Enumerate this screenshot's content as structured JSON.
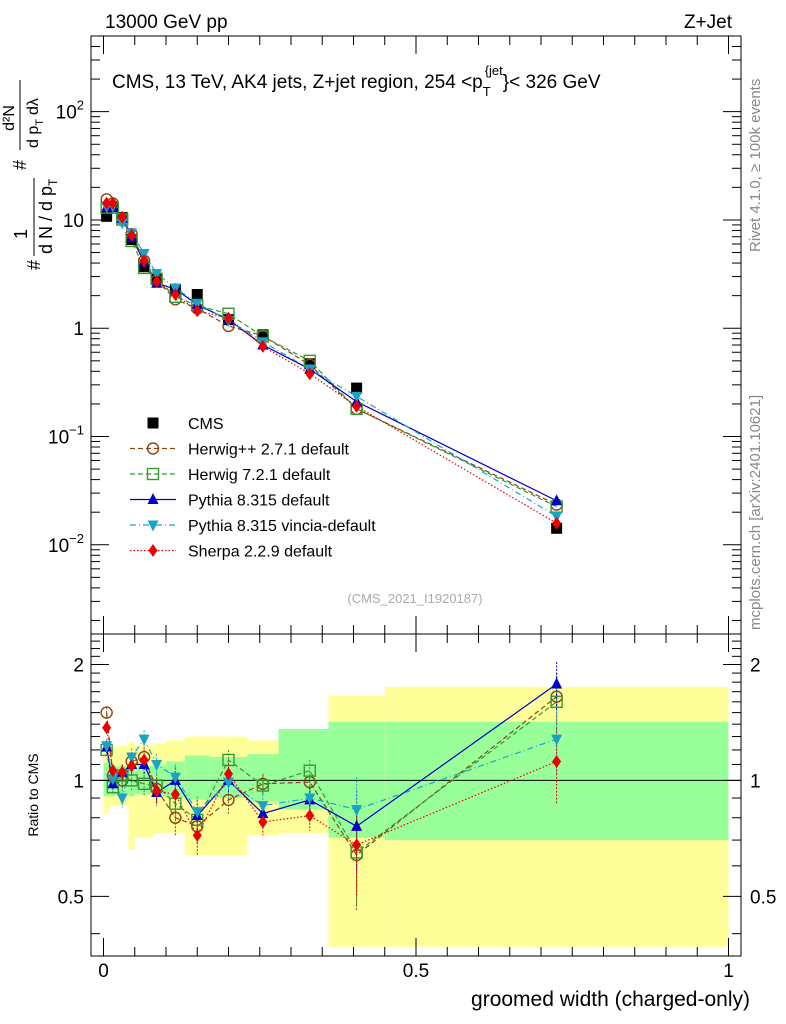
{
  "header": {
    "left_title": "13000 GeV pp",
    "right_title": "Z+Jet",
    "side_top": "Rivet 4.1.0, ≥ 100k events",
    "side_bottom": "mcplots.cern.ch [arXiv:2401.10621]"
  },
  "chart_data": [
    {
      "type": "scatter",
      "panel": "main",
      "title": "CMS, 13 TeV, AK4 jets, Z+jet region, 254 < p_T^{jet} < 326 GeV",
      "title_parts": {
        "pre": "CMS, 13 TeV, AK4 jets, Z+jet region, 254 <p",
        "sub": "T",
        "sup": "{jet",
        "mid": "}",
        "post": "< 326 GeV"
      },
      "ylabel": "1/dN/dp_T  d²N/dp_T dλ",
      "ylabel_parts": {
        "num": "1",
        "den": "d N / d p",
        "t": "T",
        "frac_num": "d²N",
        "frac_den": "d p",
        "lam": "dλ",
        "hash": "#"
      },
      "xlabel": "groomed width (charged-only)",
      "xlim": [
        0,
        1
      ],
      "ylim": [
        0.0015,
        500
      ],
      "yscale": "log",
      "ytick_labels": [
        {
          "value": 0.01,
          "base": "10",
          "exp": "−2"
        },
        {
          "value": 0.1,
          "base": "10",
          "exp": "−1"
        },
        {
          "value": 1,
          "base": "1",
          "exp": ""
        },
        {
          "value": 10,
          "base": "10",
          "exp": ""
        },
        {
          "value": 100,
          "base": "10",
          "exp": "2"
        }
      ],
      "watermark": "(CMS_2021_I1920187)",
      "x": [
        0.005,
        0.015,
        0.03,
        0.045,
        0.065,
        0.085,
        0.115,
        0.15,
        0.2,
        0.255,
        0.33,
        0.405,
        0.725
      ],
      "series": [
        {
          "name": "CMS",
          "color": "#000000",
          "marker": "square",
          "dash": "none",
          "values": [
            10.8,
            13.3,
            10.5,
            6.6,
            3.7,
            2.9,
            2.3,
            2.05,
            1.2,
            0.87,
            0.47,
            0.28,
            0.0142
          ]
        },
        {
          "name": "Herwig++ 2.7.1 default",
          "color": "#8B4513",
          "marker": "circle-open",
          "dash": "5,3",
          "values": [
            15.5,
            14.2,
            10.3,
            7.4,
            4.2,
            2.75,
            1.85,
            1.52,
            1.05,
            0.85,
            0.46,
            0.18,
            0.0235
          ]
        },
        {
          "name": "Herwig 7.2.1 default",
          "color": "#339933",
          "marker": "square-open",
          "dash": "5,3",
          "values": [
            13.0,
            13.0,
            10.1,
            6.4,
            3.6,
            2.85,
            1.95,
            1.62,
            1.36,
            0.84,
            0.5,
            0.18,
            0.0225
          ]
        },
        {
          "name": "Pythia 8.315 default",
          "color": "#0000cc",
          "marker": "triangle-up",
          "dash": "none",
          "values": [
            13.1,
            13.0,
            10.3,
            6.9,
            4.1,
            2.6,
            2.3,
            1.65,
            1.2,
            0.7,
            0.42,
            0.21,
            0.0255
          ]
        },
        {
          "name": "Pythia 8.315 vincia-default",
          "color": "#1ba3c6",
          "marker": "triangle-down",
          "dash": "6,3,1,3",
          "values": [
            13.3,
            13.4,
            9.4,
            7.6,
            4.9,
            3.2,
            2.35,
            1.7,
            1.18,
            0.75,
            0.42,
            0.235,
            0.0183
          ]
        },
        {
          "name": "Sherpa 2.2.9 default",
          "color": "#ee0000",
          "marker": "diamond",
          "dash": "1.5,2",
          "values": [
            14.3,
            14.3,
            10.6,
            7.2,
            4.2,
            2.7,
            2.05,
            1.45,
            1.24,
            0.68,
            0.38,
            0.19,
            0.0158
          ]
        }
      ]
    },
    {
      "type": "scatter",
      "panel": "ratio",
      "ylabel": "Ratio to CMS",
      "xlabel": "groomed width (charged-only)",
      "xlim": [
        0,
        1
      ],
      "ylim": [
        0.35,
        2.4
      ],
      "yscale": "log",
      "xtick_labels": [
        "0",
        "0.5",
        "1"
      ],
      "ytick_labels": [
        {
          "value": 0.5,
          "label": "0.5"
        },
        {
          "value": 1,
          "label": "1"
        },
        {
          "value": 2,
          "label": "2"
        }
      ],
      "bands": {
        "bin_edges": [
          0,
          0.01,
          0.02,
          0.04,
          0.05,
          0.08,
          0.1,
          0.13,
          0.17,
          0.23,
          0.28,
          0.36,
          0.45,
          1.0
        ],
        "green_low": [
          0.91,
          0.91,
          0.92,
          0.91,
          0.92,
          0.91,
          0.9,
          0.89,
          0.9,
          0.88,
          0.84,
          0.71,
          0.7
        ],
        "green_high": [
          1.11,
          1.1,
          1.09,
          1.1,
          1.09,
          1.1,
          1.12,
          1.16,
          1.15,
          1.17,
          1.36,
          1.42,
          1.42
        ],
        "yellow_low": [
          0.82,
          0.86,
          0.86,
          0.66,
          0.71,
          0.73,
          0.73,
          0.64,
          0.64,
          0.72,
          0.73,
          0.37,
          0.37
        ],
        "yellow_high": [
          1.25,
          1.22,
          1.23,
          1.26,
          1.23,
          1.25,
          1.27,
          1.3,
          1.3,
          1.27,
          1.3,
          1.66,
          1.75
        ]
      },
      "series": [
        {
          "name": "Herwig++ 2.7.1 default",
          "values": [
            1.5,
            1.03,
            1.0,
            1.12,
            1.15,
            0.95,
            0.8,
            0.76,
            0.89,
            0.98,
            0.99,
            0.64,
            1.65
          ]
        },
        {
          "name": "Herwig 7.2.1 default",
          "values": [
            1.2,
            0.96,
            1.03,
            1.0,
            0.98,
            0.97,
            0.87,
            0.79,
            1.13,
            0.97,
            1.06,
            0.65,
            1.6
          ]
        },
        {
          "name": "Pythia 8.315 default",
          "values": [
            1.22,
            0.98,
            1.05,
            1.1,
            1.1,
            0.93,
            1.0,
            0.81,
            1.0,
            0.82,
            0.89,
            0.76,
            1.78
          ]
        },
        {
          "name": "Pythia 8.315 vincia-default",
          "values": [
            1.23,
            1.01,
            0.9,
            1.15,
            1.28,
            1.1,
            1.02,
            0.83,
            0.99,
            0.86,
            0.9,
            0.84,
            1.28
          ]
        },
        {
          "name": "Sherpa 2.2.9 default",
          "values": [
            1.37,
            1.06,
            1.05,
            1.09,
            1.13,
            0.94,
            0.92,
            0.72,
            1.04,
            0.78,
            0.81,
            0.68,
            1.12
          ]
        }
      ],
      "ratio_errors": [
        0.05,
        0.04,
        0.05,
        0.06,
        0.07,
        0.07,
        0.08,
        0.08,
        0.07,
        0.06,
        0.07,
        0.18,
        0.25
      ]
    }
  ]
}
